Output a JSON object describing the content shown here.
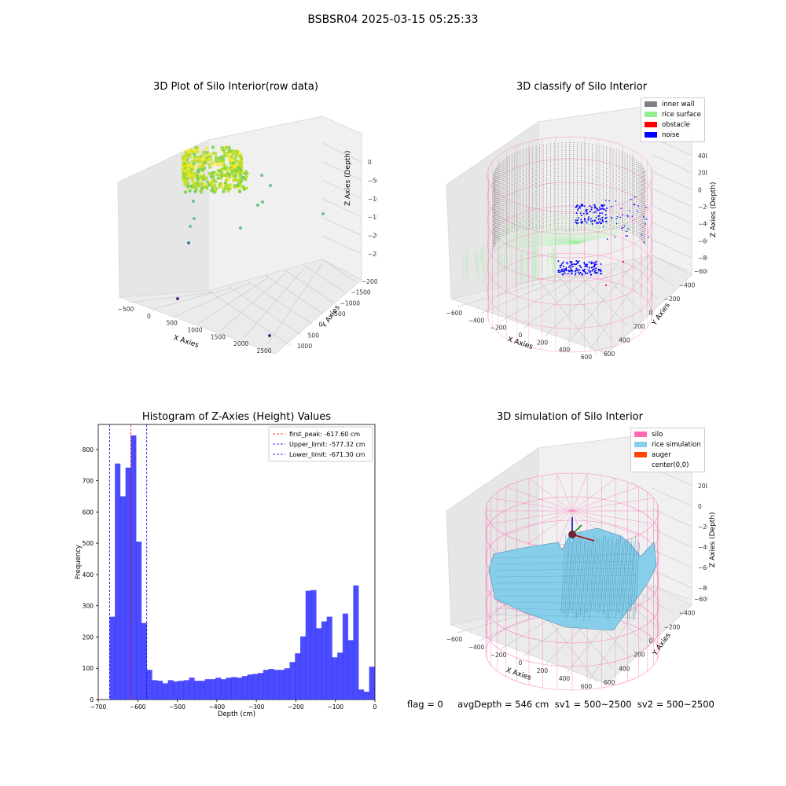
{
  "figure_title": "BSBSR04 2025-03-15 05:25:33",
  "status_line": "flag = 0     avgDepth = 546 cm  sv1 = 500~2500  sv2 = 500~2500",
  "colors": {
    "histogram_bar": "#0000ff",
    "first_peak_line": "#ff0000",
    "limit_lines": "#0000ff",
    "silo": "#ff69b4",
    "rice_simulation": "#87ceeb",
    "auger": "#ff4500",
    "inner_wall": "#808080",
    "rice_surface": "#90ee90",
    "obstacle": "#ff0000",
    "noise": "#0000ff"
  },
  "chart_data": [
    {
      "type": "scatter",
      "projection": "3d",
      "title": "3D Plot of Silo Interior(row data)",
      "xlabel": "X Axies",
      "ylabel": "Y Axies",
      "zlabel": "Z Axies (Depth)",
      "x_ticks": [
        "-500",
        "0",
        "500",
        "1000",
        "1500",
        "2000",
        "2500"
      ],
      "y_ticks": [
        "1000",
        "500",
        "0",
        "-500",
        "-1000",
        "-1500",
        "-2000"
      ],
      "z_ticks": [
        "0",
        "-500",
        "-1000",
        "-1500",
        "-2000",
        "-2500"
      ],
      "colormap": "viridis"
    },
    {
      "type": "scatter",
      "projection": "3d",
      "title": "3D classify of Silo Interior",
      "xlabel": "X Axies",
      "ylabel": "Y Axies",
      "zlabel": "Z Axies (Depth)",
      "x_ticks": [
        "-600",
        "-400",
        "-200",
        "0",
        "200",
        "400",
        "600"
      ],
      "y_ticks": [
        "600",
        "400",
        "200",
        "0",
        "-200",
        "-400",
        "-600"
      ],
      "z_ticks": [
        "400",
        "200",
        "0",
        "-200",
        "-400",
        "-600",
        "-800"
      ],
      "legend": [
        "inner wall",
        "rice surface",
        "obstacle",
        "noise"
      ],
      "legend_position": "top-right"
    },
    {
      "type": "bar",
      "title": "Histogram of Z-Axies (Height) Values",
      "xlabel": "Depth (cm)",
      "ylabel": "Frequency",
      "xlim": [
        -700,
        0
      ],
      "ylim": [
        0,
        880
      ],
      "x_ticks": [
        -700,
        -600,
        -500,
        -400,
        -300,
        -200,
        -100,
        0
      ],
      "y_ticks": [
        0,
        100,
        200,
        300,
        400,
        500,
        600,
        700,
        800
      ],
      "bin_width": 13.4,
      "bin_start": -671.3,
      "values": [
        265,
        755,
        650,
        742,
        845,
        505,
        245,
        95,
        62,
        60,
        52,
        62,
        58,
        60,
        62,
        70,
        60,
        60,
        65,
        65,
        70,
        65,
        70,
        72,
        70,
        75,
        80,
        82,
        85,
        95,
        98,
        95,
        95,
        100,
        120,
        148,
        202,
        348,
        350,
        228,
        250,
        265,
        135,
        150,
        275,
        190,
        365,
        32,
        25,
        105
      ],
      "lines": [
        {
          "label": "first_peak: -617.60 cm",
          "value": -617.6,
          "color": "#ff0000"
        },
        {
          "label": "Upper_limit: -577.32 cm",
          "value": -577.32,
          "color": "#0000ff"
        },
        {
          "label": "Lower_limit: -671.30 cm",
          "value": -671.3,
          "color": "#0000ff"
        }
      ],
      "legend_position": "top-right"
    },
    {
      "type": "surface",
      "projection": "3d",
      "title": "3D simulation of Silo Interior",
      "xlabel": "X Axies",
      "ylabel": "Y Axies",
      "zlabel": "Z Axies (Depth)",
      "x_ticks": [
        "-600",
        "-400",
        "-200",
        "0",
        "200",
        "400",
        "600"
      ],
      "y_ticks": [
        "600",
        "400",
        "200",
        "0",
        "-200",
        "-400",
        "-600"
      ],
      "z_ticks": [
        "200",
        "0",
        "-200",
        "-400",
        "-600",
        "-800"
      ],
      "legend": [
        "silo",
        "rice simulation",
        "auger",
        "center(0,0)"
      ],
      "legend_position": "top-right"
    }
  ]
}
